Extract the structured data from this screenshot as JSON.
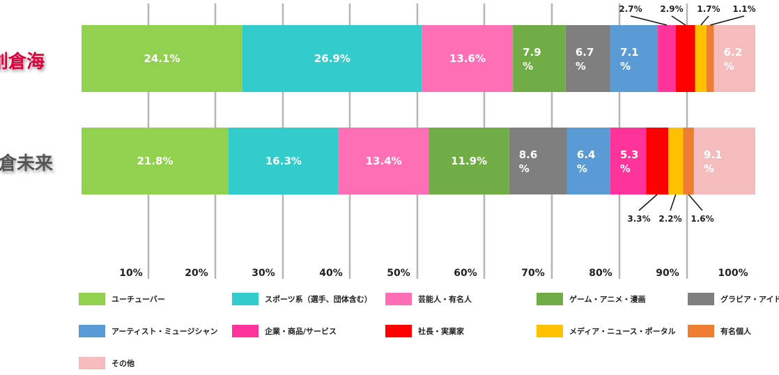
{
  "chart_data": {
    "type": "bar",
    "orientation": "horizontal",
    "stacked": true,
    "categories": [
      "創倉海",
      "倉未来"
    ],
    "x_ticks": [
      "10%",
      "20%",
      "30%",
      "40%",
      "50%",
      "60%",
      "70%",
      "80%",
      "90%",
      "100%"
    ],
    "grid": true,
    "legend_placement": "bottom",
    "series": [
      {
        "name": "ユーチューバー",
        "color": "#92d050",
        "values": [
          24.1,
          21.8
        ],
        "labels": [
          "24.1%",
          "21.8%"
        ]
      },
      {
        "name": "スポーツ系（選手、団体含む）",
        "color": "#33cccc",
        "values": [
          26.9,
          16.3
        ],
        "labels": [
          "26.9%",
          "16.3%"
        ]
      },
      {
        "name": "芸能人・有名人",
        "color": "#ff6fb6",
        "values": [
          13.6,
          13.4
        ],
        "labels": [
          "13.6%",
          "13.4%"
        ]
      },
      {
        "name": "ゲーム・アニメ・漫画",
        "color": "#70ad47",
        "values": [
          7.9,
          11.9
        ],
        "labels": [
          "7.9\n%",
          "11.9%"
        ]
      },
      {
        "name": "グラビア・アイドル・モ",
        "color": "#7f7f7f",
        "values": [
          6.7,
          8.6
        ],
        "labels": [
          "6.7\n%",
          "8.6\n%"
        ]
      },
      {
        "name": "アーティスト・ミュージシャン",
        "color": "#5b9bd5",
        "values": [
          7.1,
          6.4
        ],
        "labels": [
          "7.1\n%",
          "6.4\n%"
        ]
      },
      {
        "name": "企業・商品/サービス",
        "color": "#ff3399",
        "values": [
          2.7,
          5.3
        ],
        "labels": [
          "2.7%",
          "5.3\n%"
        ]
      },
      {
        "name": "社長・実業家",
        "color": "#ff0000",
        "values": [
          2.9,
          3.3
        ],
        "labels": [
          "2.9%",
          "3.3%"
        ]
      },
      {
        "name": "メディア・ニュース・ポータル",
        "color": "#ffc000",
        "values": [
          1.7,
          2.2
        ],
        "labels": [
          "1.7%",
          "2.2%"
        ]
      },
      {
        "name": "有名個人",
        "color": "#ed7d31",
        "values": [
          1.1,
          1.6
        ],
        "labels": [
          "1.1%",
          "1.6%"
        ]
      },
      {
        "name": "その他",
        "color": "#f4bcbc",
        "values": [
          6.2,
          9.1
        ],
        "labels": [
          "6.2\n%",
          "9.1\n%"
        ]
      }
    ],
    "category_colors": [
      "#e0003c",
      "#555555"
    ]
  }
}
